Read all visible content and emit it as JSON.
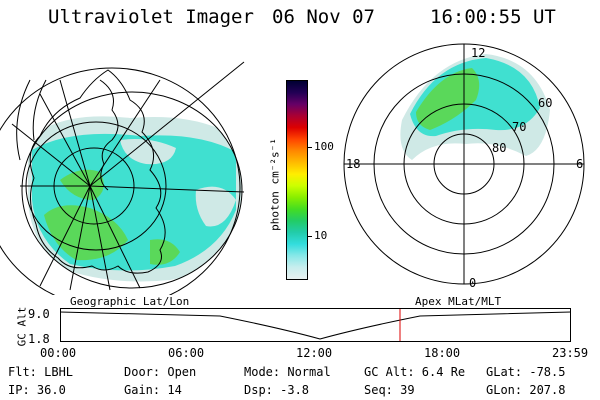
{
  "header": {
    "title": "Ultraviolet Imager",
    "date": "06 Nov 07",
    "time": "16:00:55 UT"
  },
  "colorbar": {
    "unit_label": "photon cm⁻²s⁻¹",
    "ticks": [
      "100",
      "10"
    ],
    "colors": [
      "#000033",
      "#220055",
      "#660066",
      "#aa0033",
      "#dd0000",
      "#ff4400",
      "#ff8800",
      "#ffbb00",
      "#ffee00",
      "#ccff00",
      "#88ee00",
      "#44dd22",
      "#22cc66",
      "#22ccaa",
      "#33dddd",
      "#88e8e8",
      "#c8eeee",
      "#e8f0f0"
    ]
  },
  "left_panel": {
    "caption": "Geographic Lat/Lon",
    "aurora_colors": {
      "cyan": "#40e0d0",
      "green": "#5ad85a",
      "pale": "#cfe9e6"
    }
  },
  "right_panel": {
    "caption": "Apex MLat/MLT",
    "mlt_labels": {
      "top": "12",
      "right": "6",
      "bottom": "0",
      "left": "18"
    },
    "lat_labels": [
      "60",
      "70",
      "80"
    ]
  },
  "altitude_plot": {
    "ylabel": "GC Alt",
    "yticks": [
      "9.0",
      "1.8"
    ],
    "xticks": [
      "00:00",
      "06:00",
      "12:00",
      "18:00",
      "23:59"
    ],
    "marker_color": "#dd0000"
  },
  "info": {
    "flt": "Flt: LBHL",
    "ip": "IP: 36.0",
    "door": "Door: Open",
    "gain": "Gain: 14",
    "mode": "Mode: Normal",
    "dsp": "Dsp:    -3.8",
    "gcalt": "GC Alt: 6.4 Re",
    "seq": "Seq: 39",
    "glat": "GLat: -78.5",
    "glon": "GLon: 207.8"
  }
}
